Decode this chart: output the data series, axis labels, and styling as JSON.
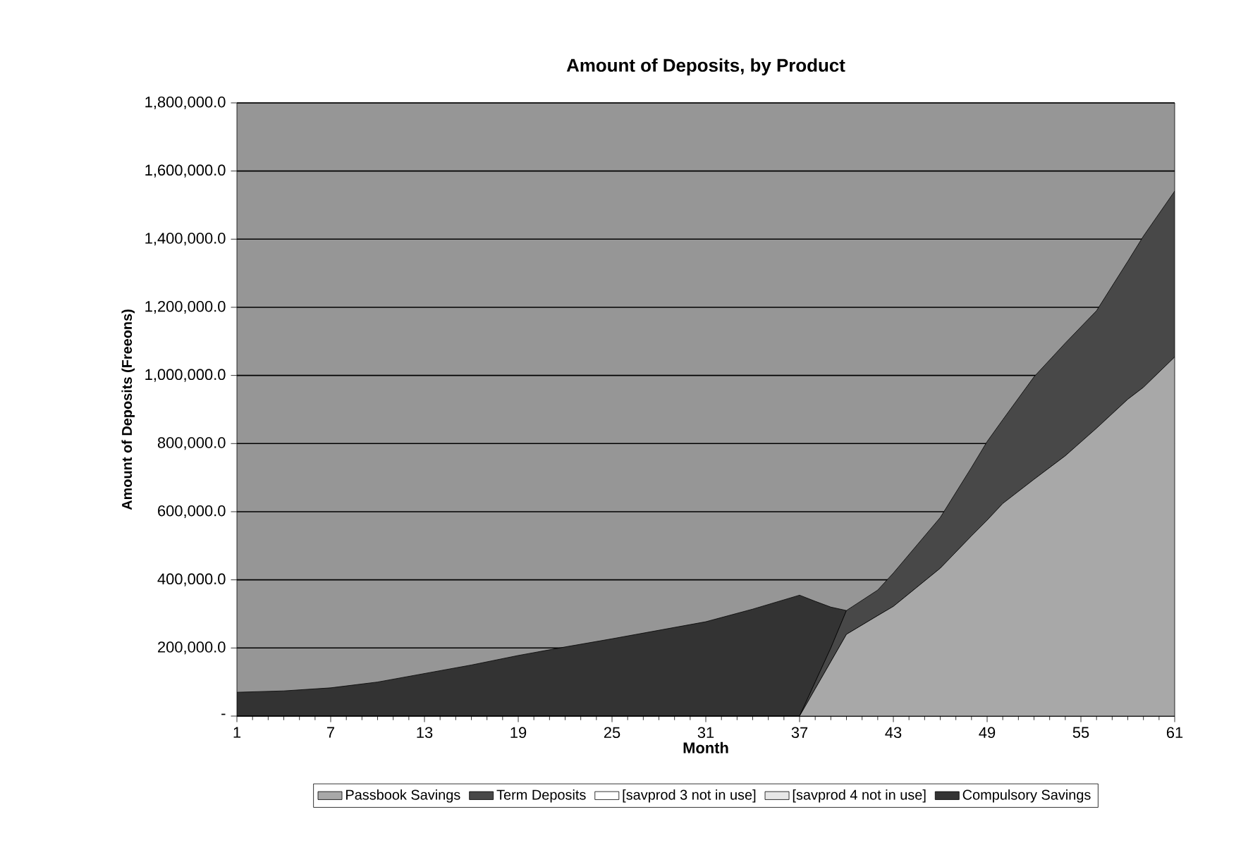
{
  "chart_data": {
    "type": "area",
    "stacked": true,
    "title": "Amount of Deposits, by Product",
    "xlabel": "Month",
    "ylabel": "Amount of Deposits (Freeons)",
    "x": [
      1,
      4,
      7,
      10,
      13,
      16,
      19,
      22,
      25,
      28,
      31,
      34,
      37,
      38,
      39,
      40,
      42,
      43,
      46,
      48,
      49,
      50,
      52,
      54,
      56,
      58,
      59,
      61
    ],
    "series": [
      {
        "name": "Passbook Savings",
        "color": "#a8a8a8",
        "values": [
          0,
          0,
          0,
          0,
          0,
          0,
          0,
          0,
          0,
          0,
          0,
          0,
          0,
          80000,
          160000,
          240000,
          295000,
          322000,
          434000,
          529000,
          575000,
          624000,
          695000,
          764000,
          845000,
          930000,
          965000,
          1054000
        ]
      },
      {
        "name": "Term Deposits",
        "color": "#484848",
        "values": [
          0,
          0,
          0,
          0,
          0,
          0,
          0,
          0,
          0,
          0,
          0,
          0,
          0,
          20000,
          40000,
          70000,
          75000,
          98000,
          149000,
          201000,
          231000,
          246000,
          301000,
          331000,
          345000,
          405000,
          444000,
          487000
        ]
      },
      {
        "name": "[savprod 3 not in use]",
        "color": "#ffffff",
        "values": [
          null,
          null,
          null,
          null,
          null,
          null,
          null,
          null,
          null,
          null,
          null,
          null,
          null,
          null,
          null,
          null,
          null,
          null,
          null,
          null,
          null,
          null,
          null,
          null,
          null,
          null,
          null,
          null
        ]
      },
      {
        "name": "[savprod 4 not in use]",
        "color": "#e6e6e6",
        "values": [
          null,
          null,
          null,
          null,
          null,
          null,
          null,
          null,
          null,
          null,
          null,
          null,
          null,
          null,
          null,
          null,
          null,
          null,
          null,
          null,
          null,
          null,
          null,
          null,
          null,
          null,
          null,
          null
        ]
      },
      {
        "name": "Compulsory Savings",
        "color": "#333333",
        "values": [
          70000,
          74000,
          83000,
          100000,
          125000,
          150000,
          178000,
          203000,
          227000,
          252000,
          277000,
          314000,
          355000,
          237000,
          120000,
          0,
          null,
          null,
          null,
          null,
          null,
          null,
          null,
          null,
          null,
          null,
          null,
          null
        ]
      }
    ],
    "xlim": [
      1,
      61
    ],
    "xticks": [
      1,
      7,
      13,
      19,
      25,
      31,
      37,
      43,
      49,
      55,
      61
    ],
    "ylim": [
      0,
      1800000
    ],
    "yticks": [
      {
        "value": 0,
        "label": "-"
      },
      {
        "value": 200000,
        "label": "200,000.0"
      },
      {
        "value": 400000,
        "label": "400,000.0"
      },
      {
        "value": 600000,
        "label": "600,000.0"
      },
      {
        "value": 800000,
        "label": "800,000.0"
      },
      {
        "value": 1000000,
        "label": "1,000,000.0"
      },
      {
        "value": 1200000,
        "label": "1,200,000.0"
      },
      {
        "value": 1400000,
        "label": "1,400,000.0"
      },
      {
        "value": 1600000,
        "label": "1,600,000.0"
      },
      {
        "value": 1800000,
        "label": "1,800,000.0"
      }
    ],
    "grid": "y",
    "legend": "bottom"
  }
}
